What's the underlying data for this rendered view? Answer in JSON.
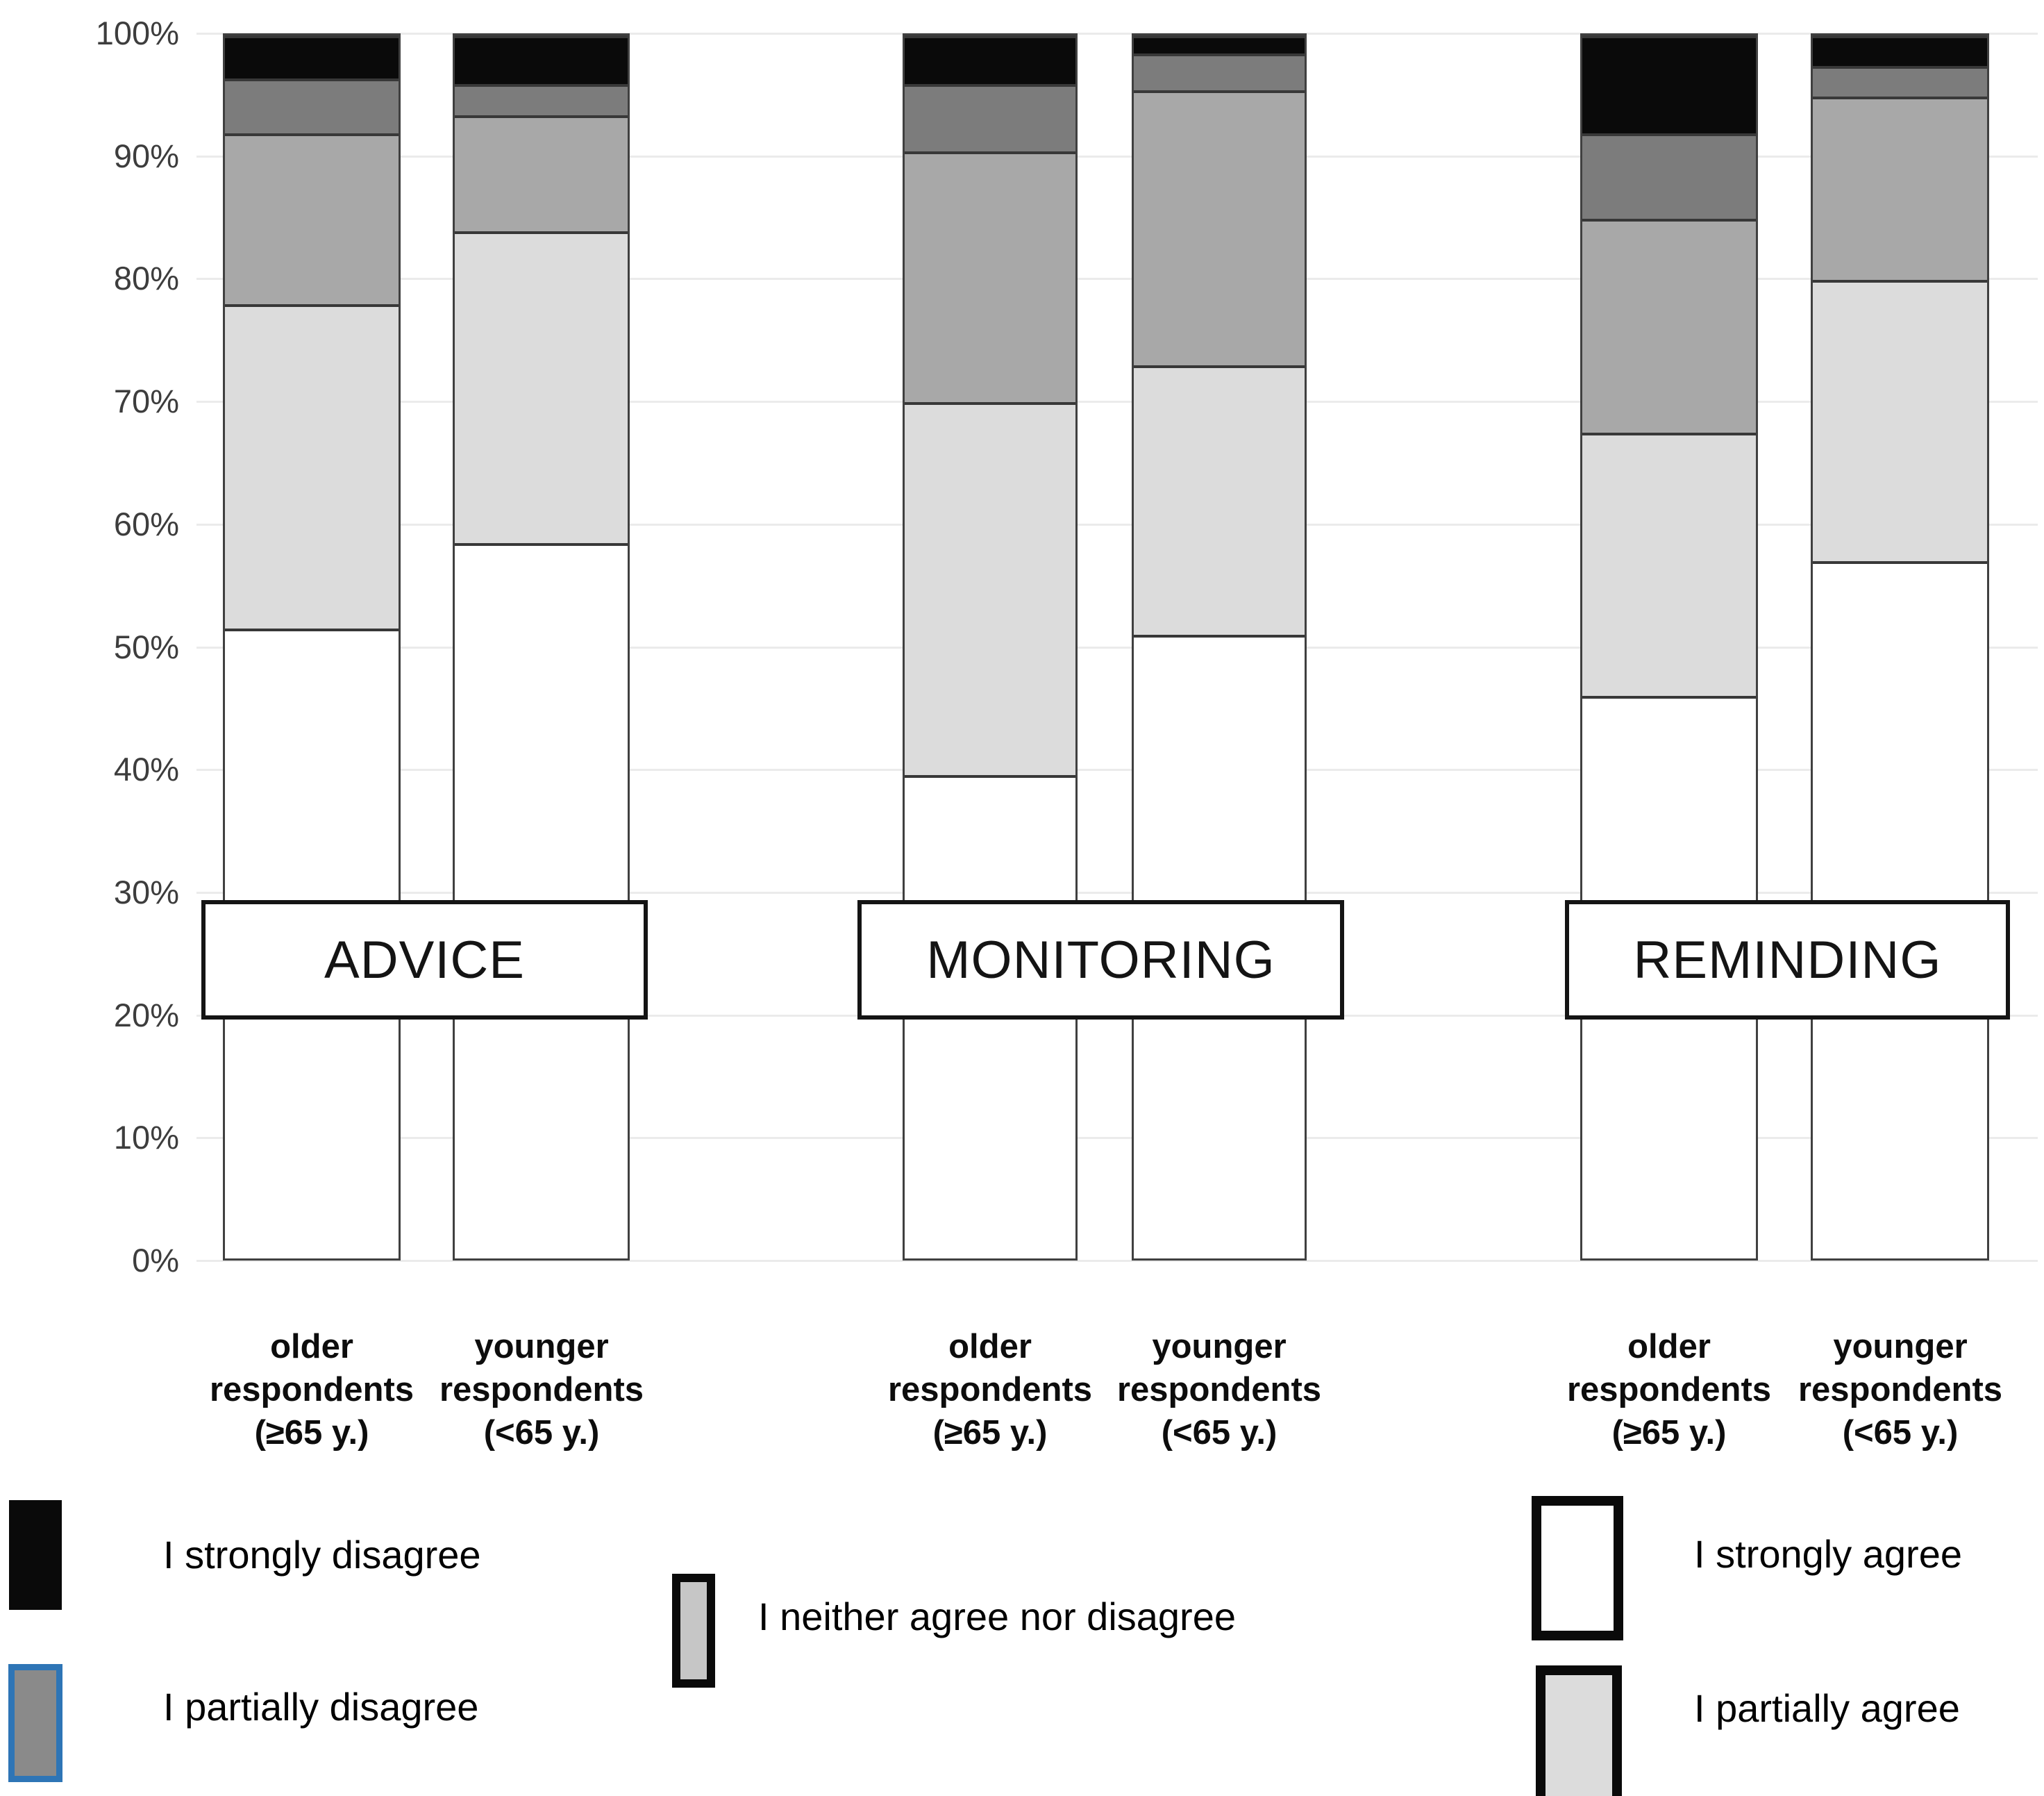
{
  "figure": {
    "title": "",
    "description": "100% stacked bar chart of agreement with robot functions (advice, monitoring, reminding) by age group"
  },
  "axis": {
    "y_ticks": [
      "100%",
      "90%",
      "80%",
      "70%",
      "60%",
      "50%",
      "40%",
      "30%",
      "20%",
      "10%",
      "0%"
    ],
    "ylim": [
      0,
      100
    ],
    "grid": "on"
  },
  "chart_data": {
    "type": "bar",
    "stacked": true,
    "percent": true,
    "title": "",
    "xlabel": "",
    "ylabel": "",
    "ylim": [
      0,
      100
    ],
    "legend_position": "bottom",
    "groups": [
      "ADVICE",
      "MONITORING",
      "REMINDING"
    ],
    "categories": [
      {
        "group": "ADVICE",
        "lines": [
          "older",
          "respondents",
          "(≥65 y.)"
        ]
      },
      {
        "group": "ADVICE",
        "lines": [
          "younger",
          "respondents",
          "(<65 y.)"
        ]
      },
      {
        "group": "MONITORING",
        "lines": [
          "older",
          "respondents",
          "(≥65 y.)"
        ]
      },
      {
        "group": "MONITORING",
        "lines": [
          "younger",
          "respondents",
          "(<65 y.)"
        ]
      },
      {
        "group": "REMINDING",
        "lines": [
          "older",
          "respondents",
          "(≥65 y.)"
        ]
      },
      {
        "group": "REMINDING",
        "lines": [
          "younger",
          "respondents",
          "(<65 y.)"
        ]
      }
    ],
    "series": [
      {
        "name": "I strongly agree",
        "color": "#FFFFFF",
        "values": [
          51.5,
          58.5,
          39.5,
          51.0,
          46.0,
          57.0
        ]
      },
      {
        "name": "I partially agree",
        "color": "#DCDCDC",
        "values": [
          26.5,
          25.5,
          30.5,
          22.0,
          21.5,
          23.0
        ]
      },
      {
        "name": "I neither agree nor disagree",
        "color": "#A8A8A8",
        "values": [
          14.0,
          9.5,
          20.5,
          22.5,
          17.5,
          15.0
        ]
      },
      {
        "name": "I partially disagree",
        "color": "#7C7C7C",
        "values": [
          4.5,
          2.5,
          5.5,
          3.0,
          7.0,
          2.5
        ]
      },
      {
        "name": "I strongly disagree",
        "color": "#0A0A0A",
        "values": [
          3.5,
          4.0,
          4.0,
          1.5,
          8.0,
          2.5
        ]
      }
    ]
  },
  "legend": {
    "items": [
      {
        "label": "I strongly disagree",
        "fill": "#0A0A0A",
        "border": "#0A0A0A"
      },
      {
        "label": "I partially disagree",
        "fill": "#8A8A8A",
        "border": "#2E75B6"
      },
      {
        "label": "I neither agree nor disagree",
        "fill": "#C6C6C6",
        "border": "#0A0A0A"
      },
      {
        "label": "I strongly agree",
        "fill": "#FFFFFF",
        "border": "#0A0A0A"
      },
      {
        "label": "I partially agree",
        "fill": "#DCDCDC",
        "border": "#0A0A0A"
      }
    ]
  },
  "colors": {
    "grid": "#EBEBEB",
    "bar_outline": "#404040",
    "segment_divider": "#383838",
    "selection_blue": "#2E75B6"
  }
}
